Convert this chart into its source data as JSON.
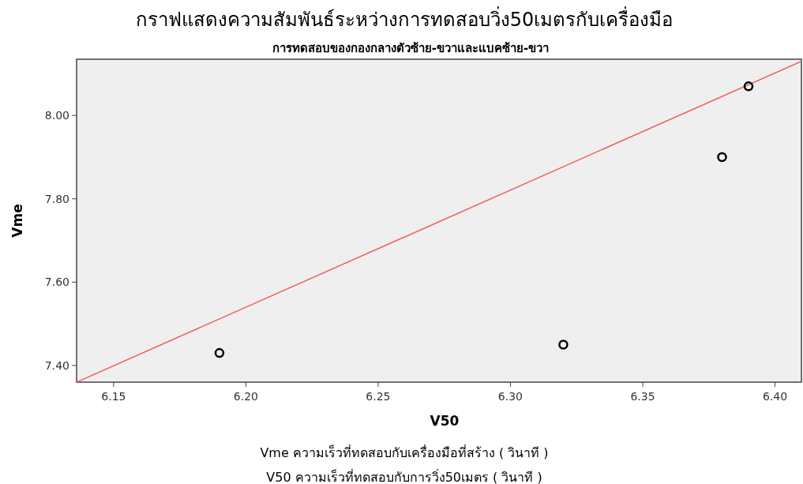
{
  "chart_data": {
    "type": "scatter",
    "title": "กราฟแสดงความสัมพันธ์ระหว่างการทดสอบวิ่ง50เมตรกับเครื่องมือ",
    "subtitle": "การทดสอบของกองกลางตัวซ้าย-ขวาและแบคซ้าย-ขวา",
    "xlabel": "V50",
    "ylabel": "Vme",
    "annotations": [
      "Vme ความเร็วที่ทดสอบกับเครื่องมือที่สร้าง ( วินาที )",
      "V50 ความเร็วที่ทดสอบกับการวิ่ง50เมตร ( วินาที )"
    ],
    "series": [
      {
        "type": "scatter",
        "color": "#000000",
        "marker": "circle",
        "x": [
          6.19,
          6.32,
          6.38,
          6.39
        ],
        "values": [
          7.43,
          7.45,
          7.9,
          8.07
        ]
      },
      {
        "type": "line",
        "color": "#f0605a",
        "x": [
          6.136,
          6.41
        ],
        "values": [
          7.36,
          8.13
        ]
      }
    ],
    "xlim": [
      6.136,
      6.41
    ],
    "ylim": [
      7.36,
      8.135
    ],
    "xticks": [
      6.15,
      {
        "value": 6.2,
        "label": "6.20"
      },
      6.25,
      {
        "value": 6.3,
        "label": "6.30"
      },
      6.35,
      {
        "value": 6.4,
        "label": "6.40"
      }
    ],
    "yticks": [
      {
        "value": 7.4,
        "label": "7.40"
      },
      {
        "value": 7.6,
        "label": "7.60"
      },
      {
        "value": 7.8,
        "label": "7.80"
      },
      {
        "value": 8.0,
        "label": "8.00"
      }
    ],
    "grid": false
  }
}
